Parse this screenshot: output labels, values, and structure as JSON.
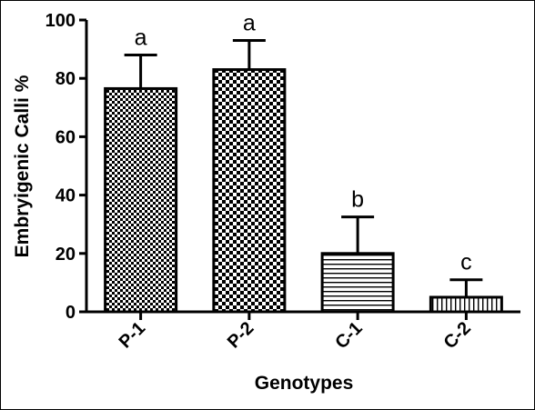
{
  "chart_data": {
    "type": "bar",
    "xlabel": "Genotypes",
    "ylabel": "Embryigenic Calli %",
    "ylim": [
      0,
      100
    ],
    "yticks": [
      "0",
      "20",
      "40",
      "60",
      "80",
      "100"
    ],
    "grid": false,
    "categories": [
      "P-1",
      "P-2",
      "C-1",
      "C-2"
    ],
    "values": [
      76.5,
      83,
      20,
      5
    ],
    "error_upper": [
      88,
      93,
      32.5,
      11
    ],
    "significance_letters": [
      "a",
      "a",
      "b",
      "c"
    ],
    "bar_patterns": [
      "fine-checker",
      "coarse-checker",
      "horizontal-stripes",
      "vertical-stripes"
    ]
  }
}
